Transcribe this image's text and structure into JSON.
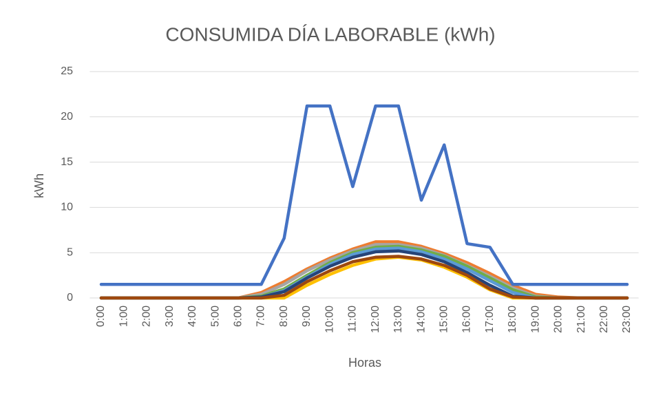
{
  "chart_data": {
    "type": "line",
    "title": "CONSUMIDA DÍA LABORABLE (kWh)",
    "x_label": "Horas",
    "y_label": "kWh",
    "categories": [
      "0:00",
      "1:00",
      "2:00",
      "3:00",
      "4:00",
      "5:00",
      "6:00",
      "7:00",
      "8:00",
      "9:00",
      "10:00",
      "11:00",
      "12:00",
      "13:00",
      "14:00",
      "15:00",
      "16:00",
      "17:00",
      "18:00",
      "19:00",
      "20:00",
      "21:00",
      "22:00",
      "23:00"
    ],
    "ylim": [
      0,
      25
    ],
    "yticks": [
      0,
      5,
      10,
      15,
      20,
      25
    ],
    "grid": true,
    "series": [
      {
        "color": "#ed7d31",
        "values": [
          0,
          0,
          0,
          0,
          0,
          0,
          0,
          0.6,
          1.8,
          3.2,
          4.4,
          5.4,
          6.2,
          6.2,
          5.7,
          4.9,
          3.9,
          2.7,
          1.4,
          0.4,
          0.1,
          0,
          0,
          0
        ]
      },
      {
        "color": "#a5a5a5",
        "values": [
          0,
          0,
          0,
          0,
          0,
          0,
          0,
          0.4,
          1.5,
          3.0,
          4.2,
          5.2,
          5.9,
          5.9,
          5.5,
          4.7,
          3.6,
          2.4,
          1.1,
          0.2,
          0,
          0,
          0,
          0
        ]
      },
      {
        "color": "#70ad47",
        "values": [
          0,
          0,
          0,
          0,
          0,
          0,
          0,
          0.2,
          1.0,
          2.5,
          3.9,
          5.0,
          5.6,
          5.7,
          5.3,
          4.6,
          3.5,
          2.2,
          0.9,
          0.1,
          0,
          0,
          0,
          0
        ]
      },
      {
        "color": "#5b9bd5",
        "values": [
          0,
          0,
          0,
          0,
          0,
          0,
          0,
          0.1,
          0.8,
          2.3,
          3.7,
          4.8,
          5.4,
          5.5,
          5.1,
          4.3,
          3.2,
          1.9,
          0.6,
          0,
          0,
          0,
          0,
          0
        ]
      },
      {
        "color": "#ffc000",
        "values": [
          0,
          0,
          0,
          0,
          0,
          0,
          0,
          0,
          0,
          1.4,
          2.6,
          3.6,
          4.3,
          4.5,
          4.2,
          3.4,
          2.3,
          0.9,
          0,
          0,
          0,
          0,
          0,
          0
        ]
      },
      {
        "color": "#264478",
        "values": [
          0,
          0,
          0,
          0,
          0,
          0,
          0,
          0.1,
          0.7,
          2.2,
          3.5,
          4.5,
          5.1,
          5.2,
          4.8,
          4.0,
          2.8,
          1.4,
          0.2,
          0,
          0,
          0,
          0,
          0
        ]
      },
      {
        "color": "#9e480e",
        "values": [
          0,
          0,
          0,
          0,
          0,
          0,
          0,
          0,
          0.3,
          1.8,
          3.0,
          4.0,
          4.5,
          4.6,
          4.3,
          3.6,
          2.5,
          1.0,
          0.1,
          0,
          0,
          0,
          0,
          0
        ]
      },
      {
        "color": "#4472c4",
        "values": [
          1.5,
          1.5,
          1.5,
          1.5,
          1.5,
          1.5,
          1.5,
          1.5,
          6.6,
          21.2,
          21.2,
          12.3,
          21.2,
          21.2,
          10.8,
          16.9,
          6.0,
          5.6,
          1.5,
          1.5,
          1.5,
          1.5,
          1.5,
          1.5
        ]
      }
    ]
  }
}
